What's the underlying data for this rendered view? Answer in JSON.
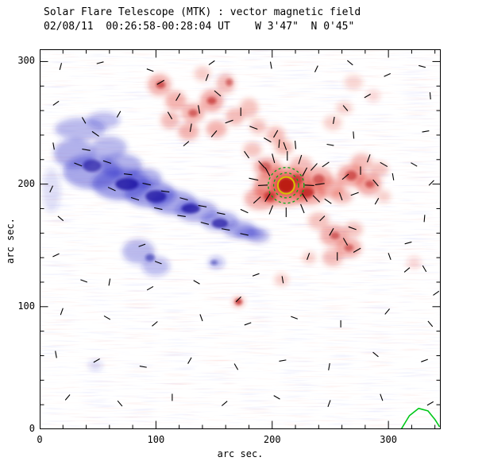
{
  "chart_data": {
    "type": "heatmap",
    "title": "Solar Flare Telescope (MTK) : vector magnetic field",
    "subtitle": "02/08/11  00:26:58-00:28:04 UT    W 3'47\"  N 0'45\"",
    "xlabel": "arc sec.",
    "ylabel": "arc sec.",
    "xlim": [
      0,
      345
    ],
    "ylim": [
      0,
      310
    ],
    "xticks": [
      0,
      100,
      200,
      300
    ],
    "yticks": [
      0,
      100,
      200,
      300
    ],
    "minor_tick_step": 20,
    "legend": "none",
    "grid": false,
    "colors": {
      "negative": "#2828c8",
      "negative_core": "#1c14a0",
      "positive": "#e03224",
      "positive_core": "#b81410",
      "vector": "#000000",
      "marker_yellow": "#d6c400",
      "marker_green": "#00a818",
      "curve_green": "#00c818"
    },
    "negative_blobs": [
      [
        35,
        245,
        22,
        9,
        0.4
      ],
      [
        55,
        252,
        14,
        7,
        0.35
      ],
      [
        30,
        225,
        18,
        12,
        0.45
      ],
      [
        45,
        210,
        25,
        14,
        0.5
      ],
      [
        70,
        200,
        25,
        13,
        0.55
      ],
      [
        95,
        192,
        22,
        11,
        0.55
      ],
      [
        70,
        215,
        18,
        10,
        0.45
      ],
      [
        115,
        185,
        20,
        10,
        0.5
      ],
      [
        135,
        178,
        18,
        9,
        0.45
      ],
      [
        155,
        170,
        16,
        8,
        0.45
      ],
      [
        172,
        163,
        14,
        7,
        0.45
      ],
      [
        188,
        158,
        10,
        6,
        0.4
      ],
      [
        90,
        205,
        15,
        8,
        0.45
      ],
      [
        60,
        230,
        15,
        9,
        0.4
      ],
      [
        85,
        145,
        14,
        10,
        0.4
      ],
      [
        100,
        133,
        12,
        8,
        0.35
      ],
      [
        152,
        136,
        7,
        5,
        0.35
      ],
      [
        48,
        52,
        6,
        4,
        0.22
      ],
      [
        180,
        160,
        12,
        5,
        0.45
      ],
      [
        10,
        195,
        8,
        18,
        0.18
      ]
    ],
    "negative_cores": [
      [
        75,
        200,
        10,
        5,
        0.8
      ],
      [
        100,
        190,
        9,
        5,
        0.75
      ],
      [
        130,
        180,
        8,
        4,
        0.75
      ],
      [
        155,
        168,
        7,
        4,
        0.7
      ],
      [
        45,
        215,
        8,
        5,
        0.65
      ],
      [
        95,
        140,
        4,
        3,
        0.5
      ],
      [
        150,
        136,
        3,
        2,
        0.45
      ]
    ],
    "positive_blobs": [
      [
        103,
        281,
        10,
        9,
        0.45
      ],
      [
        117,
        268,
        9,
        8,
        0.45
      ],
      [
        132,
        258,
        10,
        8,
        0.45
      ],
      [
        148,
        268,
        10,
        9,
        0.5
      ],
      [
        160,
        282,
        8,
        8,
        0.4
      ],
      [
        128,
        243,
        9,
        7,
        0.45
      ],
      [
        112,
        252,
        8,
        7,
        0.4
      ],
      [
        152,
        245,
        9,
        7,
        0.45
      ],
      [
        168,
        255,
        8,
        7,
        0.4
      ],
      [
        180,
        262,
        8,
        8,
        0.35
      ],
      [
        188,
        247,
        7,
        6,
        0.35
      ],
      [
        140,
        290,
        7,
        6,
        0.3
      ],
      [
        270,
        283,
        8,
        6,
        0.25
      ],
      [
        287,
        272,
        6,
        5,
        0.22
      ],
      [
        210,
        198,
        26,
        16,
        0.55
      ],
      [
        212,
        199,
        14,
        10,
        0.75
      ],
      [
        190,
        188,
        14,
        9,
        0.45
      ],
      [
        232,
        192,
        14,
        9,
        0.5
      ],
      [
        240,
        205,
        12,
        9,
        0.45
      ],
      [
        196,
        214,
        12,
        8,
        0.45
      ],
      [
        225,
        215,
        10,
        7,
        0.4
      ],
      [
        250,
        197,
        12,
        8,
        0.45
      ],
      [
        268,
        207,
        12,
        9,
        0.5
      ],
      [
        283,
        200,
        11,
        9,
        0.5
      ],
      [
        277,
        218,
        9,
        7,
        0.4
      ],
      [
        292,
        212,
        8,
        6,
        0.35
      ],
      [
        260,
        190,
        9,
        6,
        0.4
      ],
      [
        296,
        190,
        6,
        5,
        0.28
      ],
      [
        253,
        158,
        12,
        9,
        0.45
      ],
      [
        266,
        148,
        11,
        8,
        0.45
      ],
      [
        252,
        140,
        9,
        7,
        0.4
      ],
      [
        270,
        163,
        8,
        6,
        0.35
      ],
      [
        240,
        170,
        9,
        7,
        0.35
      ],
      [
        322,
        136,
        6,
        5,
        0.22
      ],
      [
        171,
        104,
        5,
        4,
        0.5
      ],
      [
        208,
        122,
        6,
        5,
        0.3
      ],
      [
        232,
        140,
        6,
        5,
        0.28
      ],
      [
        252,
        250,
        8,
        6,
        0.28
      ],
      [
        262,
        262,
        7,
        5,
        0.28
      ],
      [
        203,
        240,
        8,
        7,
        0.38
      ],
      [
        210,
        230,
        8,
        6,
        0.42
      ],
      [
        183,
        228,
        8,
        6,
        0.35
      ]
    ],
    "positive_cores": [
      [
        212,
        199,
        7,
        6,
        0.92
      ],
      [
        230,
        193,
        6,
        4,
        0.68
      ],
      [
        198,
        190,
        5,
        4,
        0.58
      ],
      [
        222,
        204,
        5,
        4,
        0.58
      ],
      [
        240,
        204,
        5,
        4,
        0.52
      ],
      [
        194,
        214,
        5,
        4,
        0.48
      ],
      [
        104,
        281,
        4,
        3,
        0.58
      ],
      [
        148,
        268,
        4,
        3,
        0.58
      ],
      [
        132,
        258,
        4,
        3,
        0.52
      ],
      [
        163,
        283,
        3,
        3,
        0.48
      ],
      [
        268,
        207,
        5,
        4,
        0.58
      ],
      [
        284,
        200,
        4,
        3,
        0.52
      ],
      [
        254,
        158,
        4,
        3,
        0.52
      ],
      [
        266,
        148,
        4,
        3,
        0.48
      ],
      [
        171,
        104,
        3,
        2.5,
        0.68
      ]
    ],
    "vectors": [
      [
        18,
        296,
        75,
        6
      ],
      [
        52,
        299,
        15,
        6
      ],
      [
        95,
        293,
        160,
        6
      ],
      [
        148,
        299,
        35,
        6
      ],
      [
        199,
        297,
        100,
        6
      ],
      [
        238,
        294,
        65,
        6
      ],
      [
        267,
        299,
        140,
        6
      ],
      [
        299,
        289,
        25,
        6
      ],
      [
        329,
        296,
        165,
        6
      ],
      [
        336,
        272,
        95,
        6
      ],
      [
        14,
        266,
        35,
        6
      ],
      [
        38,
        252,
        120,
        6
      ],
      [
        68,
        257,
        60,
        6
      ],
      [
        332,
        243,
        10,
        6
      ],
      [
        12,
        231,
        100,
        6
      ],
      [
        322,
        216,
        150,
        6
      ],
      [
        337,
        201,
        45,
        6
      ],
      [
        10,
        196,
        65,
        6
      ],
      [
        18,
        172,
        140,
        6
      ],
      [
        331,
        172,
        85,
        6
      ],
      [
        317,
        152,
        15,
        6
      ],
      [
        14,
        142,
        25,
        6
      ],
      [
        38,
        121,
        160,
        6
      ],
      [
        331,
        131,
        120,
        6
      ],
      [
        341,
        111,
        35,
        6
      ],
      [
        19,
        96,
        70,
        6
      ],
      [
        58,
        91,
        150,
        6
      ],
      [
        99,
        86,
        40,
        6
      ],
      [
        139,
        91,
        110,
        6
      ],
      [
        179,
        86,
        20,
        6
      ],
      [
        219,
        91,
        160,
        6
      ],
      [
        259,
        86,
        90,
        6
      ],
      [
        299,
        96,
        50,
        6
      ],
      [
        336,
        86,
        130,
        6
      ],
      [
        14,
        61,
        100,
        6
      ],
      [
        49,
        56,
        30,
        6
      ],
      [
        89,
        51,
        170,
        6
      ],
      [
        129,
        56,
        60,
        6
      ],
      [
        169,
        51,
        120,
        6
      ],
      [
        209,
        56,
        10,
        6
      ],
      [
        249,
        51,
        80,
        6
      ],
      [
        289,
        61,
        140,
        6
      ],
      [
        331,
        56,
        20,
        6
      ],
      [
        24,
        26,
        50,
        6
      ],
      [
        69,
        21,
        130,
        6
      ],
      [
        114,
        26,
        90,
        6
      ],
      [
        159,
        21,
        40,
        6
      ],
      [
        204,
        26,
        150,
        6
      ],
      [
        249,
        21,
        70,
        6
      ],
      [
        294,
        26,
        110,
        6
      ],
      [
        336,
        21,
        30,
        6
      ],
      [
        60,
        120,
        80,
        6
      ],
      [
        95,
        115,
        30,
        6
      ],
      [
        135,
        120,
        150,
        6
      ],
      [
        40,
        228,
        170,
        7
      ],
      [
        58,
        218,
        162,
        7
      ],
      [
        76,
        208,
        174,
        7
      ],
      [
        92,
        200,
        168,
        7
      ],
      [
        108,
        194,
        172,
        7
      ],
      [
        124,
        188,
        165,
        7
      ],
      [
        140,
        182,
        170,
        7
      ],
      [
        156,
        176,
        168,
        7
      ],
      [
        62,
        196,
        155,
        7
      ],
      [
        82,
        188,
        162,
        7
      ],
      [
        102,
        180,
        168,
        7
      ],
      [
        122,
        174,
        172,
        7
      ],
      [
        142,
        168,
        165,
        7
      ],
      [
        160,
        163,
        170,
        7
      ],
      [
        176,
        159,
        168,
        7
      ],
      [
        48,
        241,
        145,
        7
      ],
      [
        33,
        216,
        158,
        7
      ],
      [
        88,
        150,
        20,
        6
      ],
      [
        102,
        136,
        160,
        6
      ],
      [
        104,
        283,
        30,
        7
      ],
      [
        119,
        271,
        60,
        7
      ],
      [
        137,
        261,
        100,
        7
      ],
      [
        153,
        274,
        140,
        7
      ],
      [
        163,
        251,
        20,
        7
      ],
      [
        130,
        246,
        80,
        7
      ],
      [
        112,
        256,
        120,
        7
      ],
      [
        150,
        241,
        50,
        7
      ],
      [
        173,
        259,
        90,
        7
      ],
      [
        184,
        246,
        160,
        7
      ],
      [
        144,
        287,
        70,
        6
      ],
      [
        126,
        233,
        40,
        6
      ],
      [
        191,
        216,
        132,
        8
      ],
      [
        201,
        221,
        105,
        8
      ],
      [
        213,
        223,
        90,
        8
      ],
      [
        224,
        220,
        72,
        8
      ],
      [
        236,
        214,
        48,
        8
      ],
      [
        184,
        204,
        168,
        8
      ],
      [
        241,
        200,
        8,
        8
      ],
      [
        187,
        187,
        42,
        8
      ],
      [
        199,
        179,
        68,
        8
      ],
      [
        212,
        177,
        90,
        8
      ],
      [
        226,
        180,
        112,
        8
      ],
      [
        238,
        188,
        135,
        8
      ],
      [
        196,
        210,
        118,
        8
      ],
      [
        228,
        210,
        62,
        8
      ],
      [
        196,
        189,
        58,
        8
      ],
      [
        228,
        189,
        122,
        8
      ],
      [
        192,
        199,
        3,
        8
      ],
      [
        232,
        199,
        177,
        8
      ],
      [
        206,
        233,
        85,
        7
      ],
      [
        220,
        232,
        95,
        7
      ],
      [
        178,
        224,
        125,
        7
      ],
      [
        246,
        216,
        35,
        7
      ],
      [
        248,
        186,
        145,
        7
      ],
      [
        176,
        178,
        155,
        7
      ],
      [
        263,
        206,
        40,
        7
      ],
      [
        276,
        211,
        90,
        7
      ],
      [
        289,
        201,
        130,
        7
      ],
      [
        271,
        192,
        20,
        7
      ],
      [
        283,
        221,
        70,
        7
      ],
      [
        296,
        216,
        150,
        7
      ],
      [
        259,
        190,
        110,
        7
      ],
      [
        290,
        186,
        60,
        6
      ],
      [
        304,
        206,
        100,
        6
      ],
      [
        251,
        161,
        60,
        7
      ],
      [
        263,
        153,
        120,
        7
      ],
      [
        273,
        146,
        30,
        7
      ],
      [
        256,
        141,
        90,
        7
      ],
      [
        269,
        164,
        160,
        7
      ],
      [
        243,
        172,
        45,
        6
      ],
      [
        171,
        106,
        45,
        6
      ],
      [
        209,
        122,
        100,
        6
      ],
      [
        186,
        126,
        20,
        6
      ],
      [
        231,
        141,
        70,
        6
      ],
      [
        301,
        141,
        110,
        6
      ],
      [
        316,
        130,
        40,
        6
      ],
      [
        203,
        241,
        60,
        7
      ],
      [
        211,
        231,
        110,
        7
      ],
      [
        196,
        236,
        150,
        7
      ],
      [
        253,
        252,
        80,
        6
      ],
      [
        263,
        262,
        130,
        6
      ],
      [
        282,
        272,
        30,
        6
      ],
      [
        250,
        232,
        170,
        6
      ],
      [
        270,
        240,
        95,
        6
      ]
    ],
    "flare_marker": {
      "x": 212,
      "y": 199,
      "yellow_radius": 7,
      "green_radii": [
        10.5,
        15
      ],
      "dot_radius": 3
    },
    "green_curve": [
      [
        311,
        0
      ],
      [
        318,
        11
      ],
      [
        326,
        17
      ],
      [
        334,
        15
      ],
      [
        340,
        8
      ],
      [
        344,
        2
      ]
    ]
  }
}
